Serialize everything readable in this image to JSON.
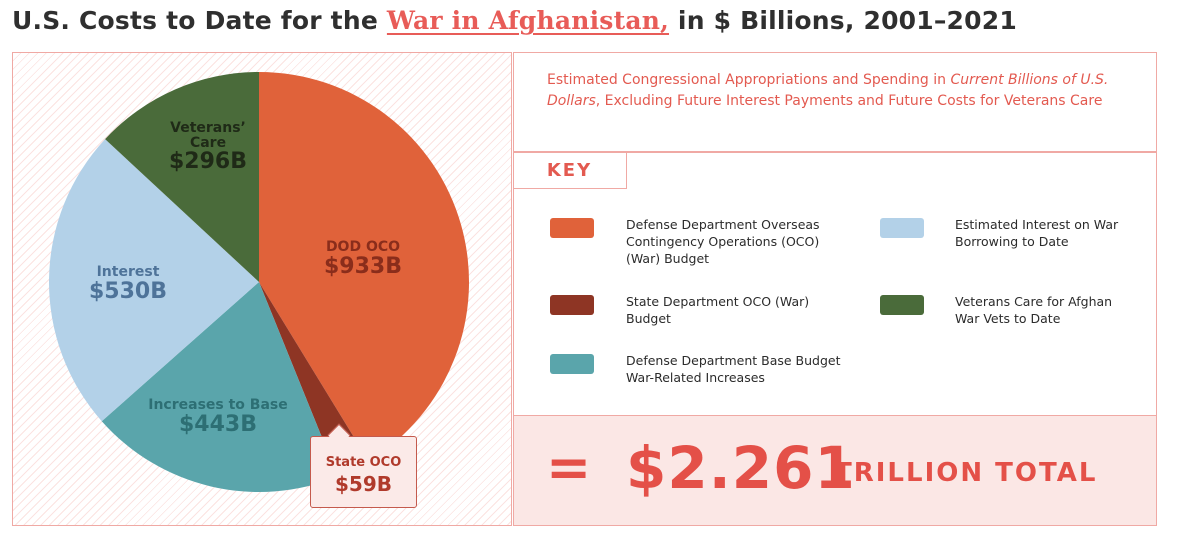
{
  "header": {
    "title_before": "U.S. Costs to Date for the ",
    "title_link": "War in Afghanistan,",
    "title_after": " in $ Billions, 2001–2021"
  },
  "description": {
    "part1": "Estimated Congressional Appropriations and Spending in ",
    "italic": "Current Billions of U.S. Dollars",
    "part2": ", Excluding Future Interest Payments and Future Costs for Veterans Care"
  },
  "key_label": "KEY",
  "chart_data": {
    "type": "pie",
    "title": "U.S. Costs to Date for the War in Afghanistan, in $ Billions, 2001–2021",
    "unit": "$ Billions",
    "slices": [
      {
        "id": "dod",
        "label": "DOD OCO",
        "value": 933,
        "value_label": "$933B",
        "color": "#e0623a"
      },
      {
        "id": "state",
        "label": "State OCO",
        "value": 59,
        "value_label": "$59B",
        "color": "#8e3524"
      },
      {
        "id": "inc",
        "label": "Increases to Base",
        "value": 443,
        "value_label": "$443B",
        "color": "#5aa5ab"
      },
      {
        "id": "int",
        "label": "Interest",
        "value": 530,
        "value_label": "$530B",
        "color": "#b3d1e8"
      },
      {
        "id": "vet",
        "label_line1": "Veterans’",
        "label_line2": "Care",
        "value": 296,
        "value_label": "$296B",
        "color": "#4a6b3a"
      }
    ],
    "legend": [
      {
        "text": "Defense Department Overseas Contingency Operations (OCO) (War) Budget",
        "color": "#e0623a"
      },
      {
        "text": "Estimated Interest on War Borrowing to Date",
        "color": "#b3d1e8"
      },
      {
        "text": "State Department OCO (War) Budget",
        "color": "#8e3524"
      },
      {
        "text": "Veterans Care for Afghan War Vets to Date",
        "color": "#4a6b3a"
      },
      {
        "text": "Defense Department Base Budget War-Related Increases",
        "color": "#5aa5ab"
      }
    ],
    "total": {
      "symbol": "=",
      "value": "$2.261",
      "label": "TRILLION TOTAL"
    }
  }
}
